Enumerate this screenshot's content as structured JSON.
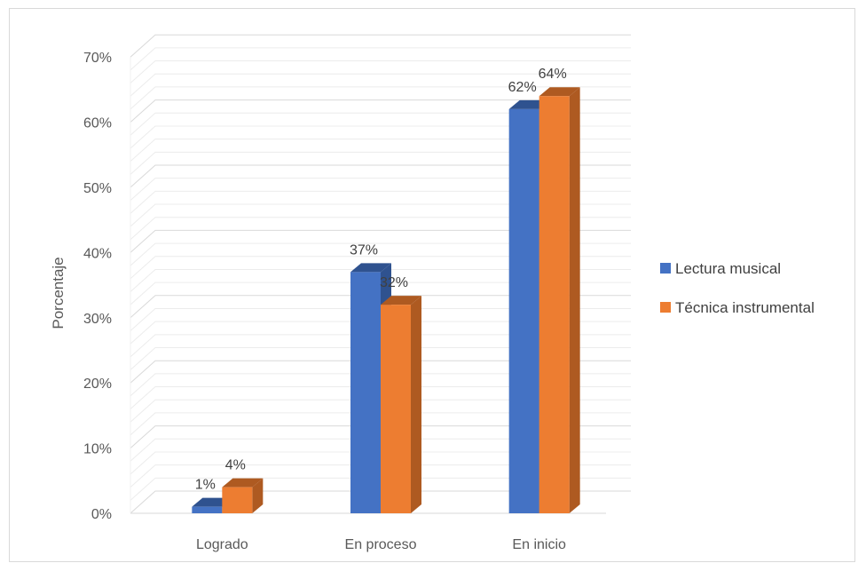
{
  "chart_data": {
    "type": "bar",
    "style": "3d-clustered-column",
    "categories": [
      "Logrado",
      "En proceso",
      "En inicio"
    ],
    "series": [
      {
        "name": "Lectura musical",
        "values": [
          1,
          37,
          62
        ],
        "labels": [
          "1%",
          "37%",
          "62%"
        ],
        "color": "#4472C4",
        "side_color": "#2F528F"
      },
      {
        "name": "Técnica instrumental",
        "values": [
          4,
          32,
          64
        ],
        "labels": [
          "4%",
          "32%",
          "64%"
        ],
        "color": "#ED7D31",
        "side_color": "#AE5A21"
      }
    ],
    "title": "",
    "xlabel": "",
    "ylabel": "Porcentaje",
    "ylim": [
      0,
      70
    ],
    "yticks": [
      0,
      10,
      20,
      30,
      40,
      50,
      60,
      70
    ],
    "ytick_labels": [
      "0%",
      "10%",
      "20%",
      "30%",
      "40%",
      "50%",
      "60%",
      "70%"
    ],
    "grid": true,
    "legend_position": "right",
    "gridline_color": "#d9d9d9",
    "text_color": "#595959"
  }
}
